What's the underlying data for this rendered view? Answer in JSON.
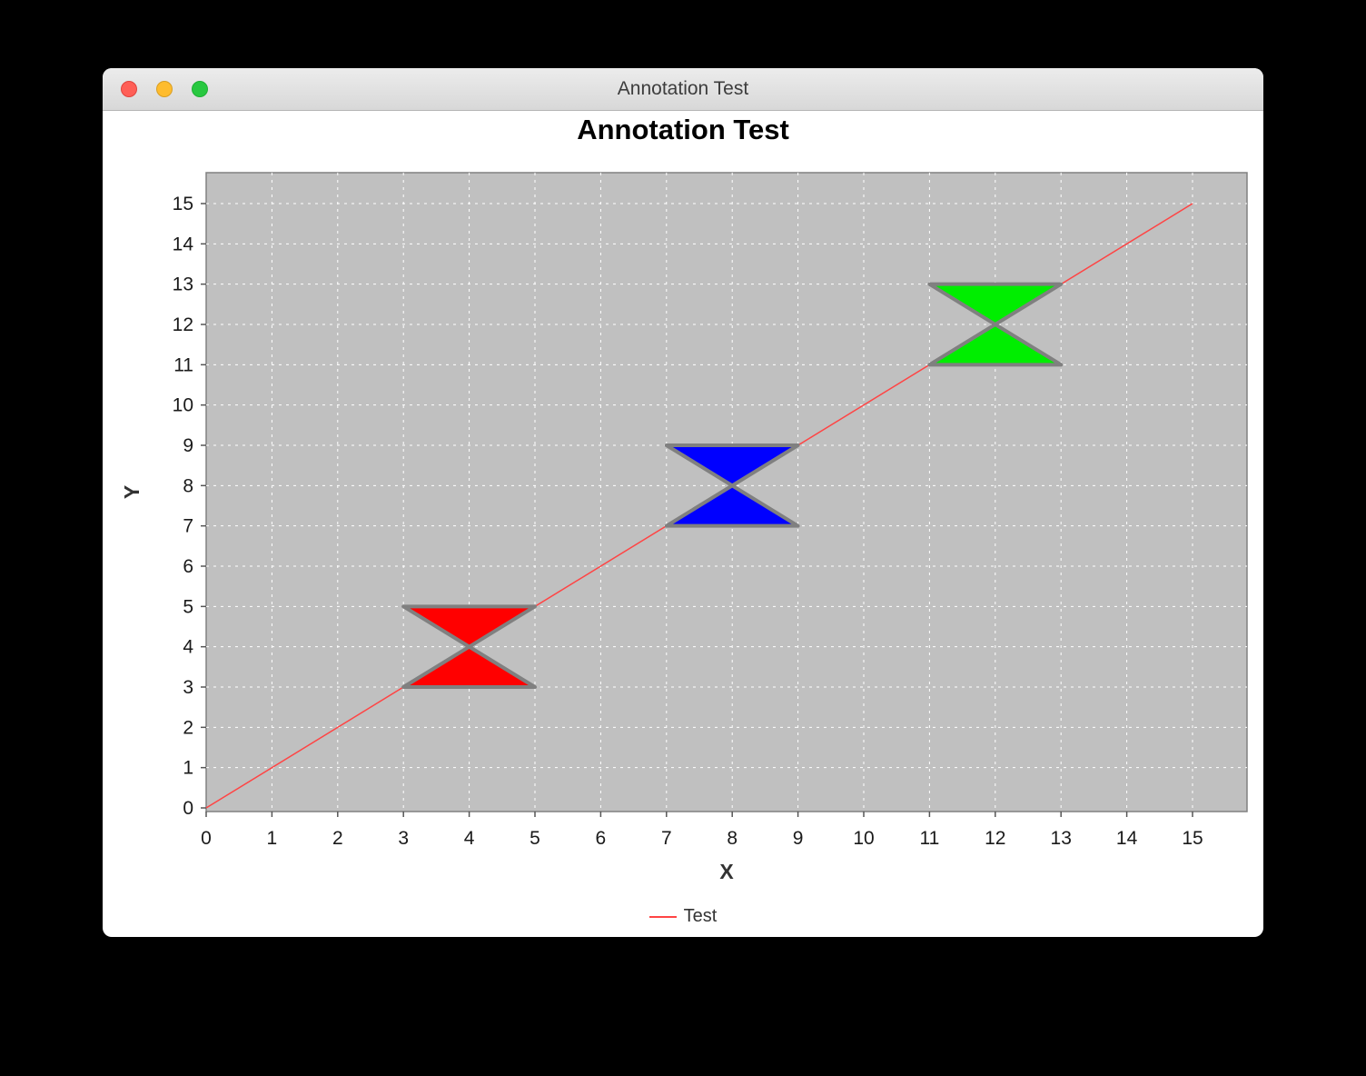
{
  "window": {
    "title": "Annotation Test",
    "traffic_lights": [
      "close",
      "minimize",
      "zoom"
    ]
  },
  "chart_data": {
    "type": "line",
    "title": "Annotation Test",
    "xlabel": "X",
    "ylabel": "Y",
    "xlim": [
      0,
      15.8
    ],
    "ylim": [
      0,
      15.8
    ],
    "xticks": [
      0,
      1,
      2,
      3,
      4,
      5,
      6,
      7,
      8,
      9,
      10,
      11,
      12,
      13,
      14,
      15
    ],
    "yticks": [
      0,
      1,
      2,
      3,
      4,
      5,
      6,
      7,
      8,
      9,
      10,
      11,
      12,
      13,
      14,
      15
    ],
    "grid": true,
    "plot_bg": "#c0c0c0",
    "plot_border": "#808080",
    "grid_color": "#ffffff",
    "series": [
      {
        "name": "Test",
        "color": "#ff4444",
        "x": [
          0,
          15
        ],
        "y": [
          0,
          15
        ]
      }
    ],
    "annotations": [
      {
        "name": "red-bowtie",
        "shape": "bowtie",
        "cx": 4,
        "cy": 4,
        "half_width": 1,
        "half_height": 1,
        "fill": "#ff0000",
        "stroke": "#808080"
      },
      {
        "name": "blue-bowtie",
        "shape": "bowtie",
        "cx": 8,
        "cy": 8,
        "half_width": 1,
        "half_height": 1,
        "fill": "#0000ff",
        "stroke": "#808080"
      },
      {
        "name": "green-bowtie",
        "shape": "bowtie",
        "cx": 12,
        "cy": 12,
        "half_width": 1,
        "half_height": 1,
        "fill": "#00ee00",
        "stroke": "#808080"
      }
    ],
    "legend": {
      "position": "bottom",
      "entries": [
        {
          "label": "Test",
          "color": "#ff4444"
        }
      ]
    }
  }
}
